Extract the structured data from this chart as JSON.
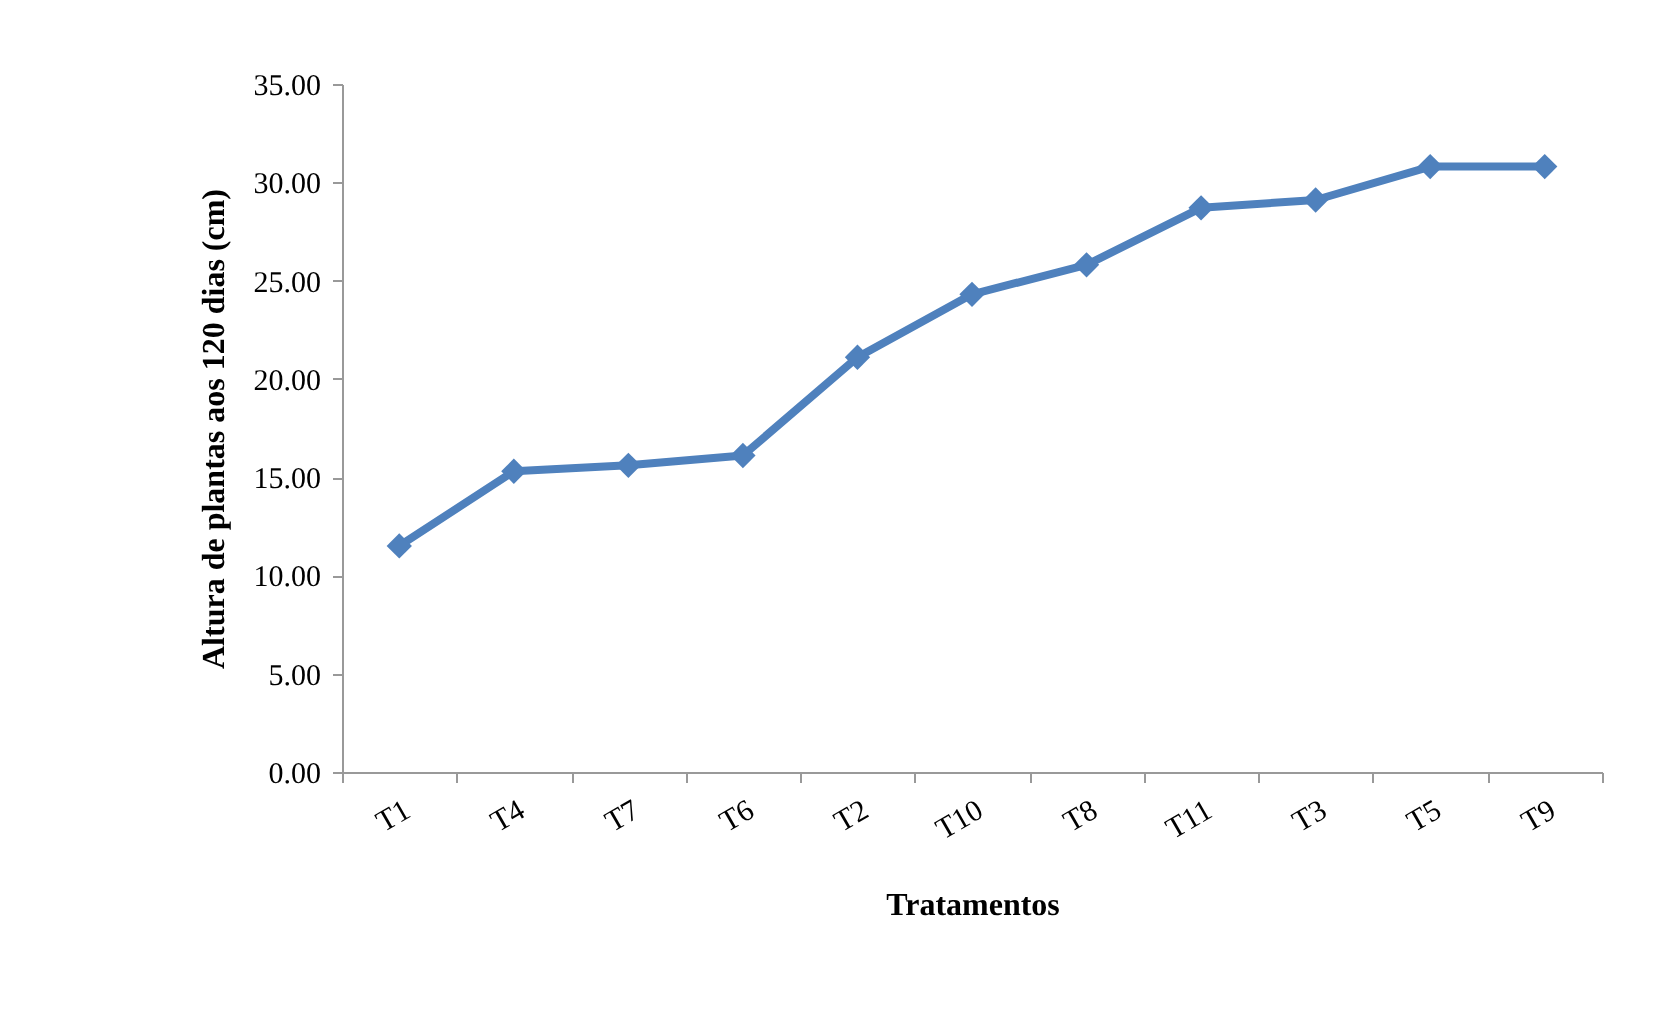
{
  "chart_data": {
    "type": "line",
    "xlabel": "Tratamentos",
    "ylabel": "Altura de plantas aos 120 dias (cm)",
    "categories": [
      "T1",
      "T4",
      "T7",
      "T6",
      "T2",
      "T10",
      "T8",
      "T11",
      "T3",
      "T5",
      "T9"
    ],
    "series": [
      {
        "color": "#4f81bd",
        "values": [
          11.5,
          15.3,
          15.6,
          16.1,
          21.1,
          24.3,
          25.8,
          28.7,
          29.1,
          30.8,
          30.8
        ]
      }
    ],
    "ylim": [
      0,
      35
    ],
    "yticks": [
      {
        "value": 0,
        "label": "0.00"
      },
      {
        "value": 5,
        "label": "5.00"
      },
      {
        "value": 10,
        "label": "10.00"
      },
      {
        "value": 15,
        "label": "15.00"
      },
      {
        "value": 20,
        "label": "20.00"
      },
      {
        "value": 25,
        "label": "25.00"
      },
      {
        "value": 30,
        "label": "30.00"
      },
      {
        "value": 35,
        "label": "35.00"
      }
    ],
    "marker": "diamond",
    "line_style": "solid"
  }
}
